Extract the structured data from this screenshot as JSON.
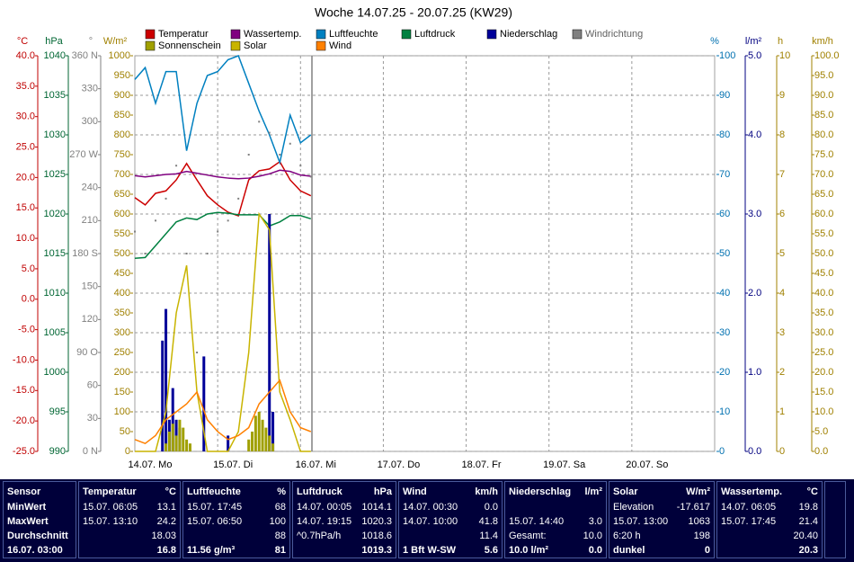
{
  "chart_data": {
    "type": "line",
    "title": "Woche 14.07.25 - 20.07.25 (KW29)",
    "xlim": [
      0,
      168
    ],
    "xticks": [
      {
        "value": 0,
        "label": "14.07. Mo"
      },
      {
        "value": 24,
        "label": "15.07. Di"
      },
      {
        "value": 48,
        "label": "16.07. Mi"
      },
      {
        "value": 72,
        "label": "17.07. Do"
      },
      {
        "value": 96,
        "label": "18.07. Fr"
      },
      {
        "value": 120,
        "label": "19.07. Sa"
      },
      {
        "value": 144,
        "label": "20.07. So"
      }
    ],
    "axes": [
      {
        "title": "°C",
        "color": "#c00000",
        "lim": [
          -25,
          40
        ],
        "ticks": [
          {
            "value": 40,
            "label": "40.0"
          },
          {
            "value": 35,
            "label": "35.0"
          },
          {
            "value": 30,
            "label": "30.0"
          },
          {
            "value": 25,
            "label": "25.0"
          },
          {
            "value": 20,
            "label": "20.0"
          },
          {
            "value": 15,
            "label": "15.0"
          },
          {
            "value": 10,
            "label": "10.0"
          },
          {
            "value": 5,
            "label": "5.0"
          },
          {
            "value": 0,
            "label": "0.0"
          },
          {
            "value": -5,
            "label": "-5.0"
          },
          {
            "value": -10,
            "label": "-10.0"
          },
          {
            "value": -15,
            "label": "-15.0"
          },
          {
            "value": -20,
            "label": "-20.0"
          },
          {
            "value": -25,
            "label": "-25.0"
          }
        ]
      },
      {
        "title": "hPa",
        "color": "#006633",
        "lim": [
          990,
          1040
        ],
        "ticks": [
          1040,
          1035,
          1030,
          1025,
          1020,
          1015,
          1010,
          1005,
          1000,
          995,
          990
        ]
      },
      {
        "title": "°",
        "color": "#808080",
        "lim": [
          0,
          360
        ],
        "ticks": [
          {
            "value": 360,
            "label": "360 N"
          },
          330,
          300,
          {
            "value": 270,
            "label": "270 W"
          },
          240,
          210,
          {
            "value": 180,
            "label": "180 S"
          },
          150,
          120,
          {
            "value": 90,
            "label": "90 O"
          },
          60,
          30,
          {
            "value": 0,
            "label": "0 N"
          }
        ]
      },
      {
        "title": "W/m²",
        "color": "#a08000",
        "lim": [
          0,
          1000
        ],
        "ticks": [
          1000,
          950,
          900,
          850,
          800,
          750,
          700,
          650,
          600,
          550,
          500,
          450,
          400,
          350,
          300,
          250,
          200,
          150,
          100,
          50,
          0
        ]
      },
      {
        "title": "%",
        "color": "#0070b0",
        "lim": [
          0,
          100
        ],
        "grid": true,
        "ticks": [
          100,
          90,
          80,
          70,
          60,
          50,
          40,
          30,
          20,
          10,
          0
        ]
      },
      {
        "title": "l/m²",
        "color": "#000080",
        "lim": [
          0,
          5
        ],
        "ticks": [
          {
            "value": 5,
            "label": "5.0"
          },
          {
            "value": 4,
            "label": "4.0"
          },
          {
            "value": 3,
            "label": "3.0"
          },
          {
            "value": 2,
            "label": "2.0"
          },
          {
            "value": 1,
            "label": "1.0"
          },
          {
            "value": 0,
            "label": "0.0"
          }
        ]
      },
      {
        "title": "h",
        "color": "#a08000",
        "lim": [
          0,
          10
        ],
        "ticks": [
          10,
          9,
          8,
          7,
          6,
          5,
          4,
          3,
          2,
          1,
          0
        ]
      },
      {
        "title": "km/h",
        "color": "#a08000",
        "lim": [
          0,
          100
        ],
        "ticks": [
          {
            "value": 100,
            "label": "100.0"
          },
          {
            "value": 95,
            "label": "95.0"
          },
          {
            "value": 90,
            "label": "90.0"
          },
          {
            "value": 85,
            "label": "85.0"
          },
          {
            "value": 80,
            "label": "80.0"
          },
          {
            "value": 75,
            "label": "75.0"
          },
          {
            "value": 70,
            "label": "70.0"
          },
          {
            "value": 65,
            "label": "65.0"
          },
          {
            "value": 60,
            "label": "60.0"
          },
          {
            "value": 55,
            "label": "55.0"
          },
          {
            "value": 50,
            "label": "50.0"
          },
          {
            "value": 45,
            "label": "45.0"
          },
          {
            "value": 40,
            "label": "40.0"
          },
          {
            "value": 35,
            "label": "35.0"
          },
          {
            "value": 30,
            "label": "30.0"
          },
          {
            "value": 25,
            "label": "25.0"
          },
          {
            "value": 20,
            "label": "20.0"
          },
          {
            "value": 15,
            "label": "15.0"
          },
          {
            "value": 10,
            "label": "10.0"
          },
          {
            "value": 5,
            "label": "5.0"
          },
          {
            "value": 0,
            "label": "0.0"
          }
        ]
      }
    ],
    "x": [
      0,
      3,
      6,
      9,
      12,
      15,
      18,
      21,
      24,
      27,
      30,
      33,
      36,
      39,
      42,
      45,
      48,
      51
    ],
    "series": [
      {
        "name": "Temperatur",
        "color": "#cc0000",
        "axis": 0,
        "mark": "line",
        "values": [
          16.7,
          15.5,
          17.4,
          17.8,
          19.6,
          22.3,
          19.6,
          17,
          15.5,
          14.3,
          13.7,
          19.6,
          21.1,
          21.4,
          22.6,
          19.6,
          17.8,
          17
        ]
      },
      {
        "name": "Wassertemp.",
        "color": "#800080",
        "axis": 0,
        "mark": "line",
        "values": [
          20.3,
          20.1,
          20.3,
          20.5,
          20.6,
          21,
          20.7,
          20.4,
          20.1,
          19.9,
          19.8,
          19.9,
          20.2,
          20.6,
          21.2,
          21,
          20.4,
          20.2
        ]
      },
      {
        "name": "Luftfeuchte",
        "color": "#0080c0",
        "axis": 4,
        "mark": "line",
        "values": [
          94,
          97,
          88,
          96,
          96,
          76,
          88,
          95,
          96,
          99,
          100,
          93,
          86,
          80,
          73,
          85,
          78,
          80
        ]
      },
      {
        "name": "Luftdruck",
        "color": "#008040",
        "axis": 1,
        "mark": "line",
        "values": [
          1014.4,
          1014.5,
          1016,
          1017.5,
          1019,
          1019.5,
          1019.3,
          1020,
          1020.2,
          1020.1,
          1019.9,
          1019.9,
          1019.9,
          1018.5,
          1019,
          1019.8,
          1019.8,
          1019.4
        ]
      },
      {
        "name": "Niederschlag",
        "color": "#000099",
        "axis": 5,
        "mark": "bar",
        "x": [
          8,
          9,
          10,
          11,
          12,
          13,
          20,
          27,
          39,
          40
        ],
        "values": [
          1.4,
          1.8,
          0.4,
          0.8,
          0.4,
          0.3,
          1.2,
          0.2,
          3,
          0.5
        ]
      },
      {
        "name": "Windrichtung",
        "color": "#808080",
        "axis": 2,
        "mark": "dots",
        "values": [
          200,
          180,
          210,
          230,
          260,
          180,
          90,
          180,
          200,
          210,
          230,
          270,
          300,
          290,
          270,
          280,
          260,
          250
        ]
      },
      {
        "name": "Sonnenschein",
        "color": "#a0a000",
        "axis": 6,
        "mark": "bar",
        "x": [
          9,
          10,
          11,
          12,
          13,
          14,
          15,
          16,
          33,
          34,
          35,
          36,
          37,
          38,
          39,
          40
        ],
        "values": [
          0.2,
          0.5,
          0.7,
          0.4,
          0.8,
          0.6,
          0.3,
          0.2,
          0.3,
          0.5,
          0.9,
          1,
          0.8,
          0.6,
          0.4,
          0.2
        ]
      },
      {
        "name": "Solar",
        "color": "#c8b400",
        "axis": 3,
        "mark": "line",
        "values": [
          0,
          0,
          0,
          100,
          350,
          470,
          150,
          0,
          0,
          0,
          50,
          250,
          600,
          560,
          150,
          80,
          0,
          0
        ]
      },
      {
        "name": "Wind",
        "color": "#ff8000",
        "axis": 7,
        "mark": "line",
        "values": [
          3,
          2,
          4,
          8,
          10,
          12,
          15,
          8,
          5,
          3,
          4,
          6,
          12,
          15,
          18,
          10,
          6,
          5
        ]
      }
    ]
  },
  "table": {
    "columns": [
      {
        "header": "Sensor",
        "rows": [
          {
            "label": "MinWert"
          },
          {
            "label": "MaxWert"
          },
          {
            "label": "Durchschnitt"
          },
          {
            "label": "16.07. 03:00"
          }
        ]
      },
      {
        "header": "Temperatur",
        "unit": "°C",
        "rows": [
          {
            "label": "15.07. 06:05",
            "value": "13.1"
          },
          {
            "label": "15.07. 13:10",
            "value": "24.2"
          },
          {
            "value": "18.03"
          },
          {
            "value": "16.8"
          }
        ]
      },
      {
        "header": "Luftfeuchte",
        "unit": "%",
        "rows": [
          {
            "label": "15.07. 17:45",
            "value": "68"
          },
          {
            "label": "15.07. 06:50",
            "value": "100"
          },
          {
            "value": "88"
          },
          {
            "label": "11.56 g/m³",
            "value": "81"
          }
        ]
      },
      {
        "header": "Luftdruck",
        "unit": "hPa",
        "rows": [
          {
            "label": "14.07. 00:05",
            "value": "1014.1"
          },
          {
            "label": "14.07. 19:15",
            "value": "1020.3"
          },
          {
            "label": "^0.7hPa/h",
            "value": "1018.6"
          },
          {
            "value": "1019.3"
          }
        ]
      },
      {
        "header": "Wind",
        "unit": "km/h",
        "rows": [
          {
            "label": "14.07. 00:30",
            "value": "0.0"
          },
          {
            "label": "14.07. 10:00",
            "value": "41.8"
          },
          {
            "value": "11.4"
          },
          {
            "label": "1 Bft W-SW",
            "value": "5.6"
          }
        ]
      },
      {
        "header": "Niederschlag",
        "unit": "l/m²",
        "rows": [
          {},
          {
            "label": "15.07. 14:40",
            "value": "3.0"
          },
          {
            "label": "Gesamt:",
            "value": "10.0"
          },
          {
            "label": "10.0 l/m²",
            "value": "0.0"
          }
        ]
      },
      {
        "header": "Solar",
        "unit": "W/m²",
        "rows": [
          {
            "label": "Elevation",
            "value": "-17.617"
          },
          {
            "label": "15.07. 13:00",
            "value": "1063"
          },
          {
            "label": "6:20 h",
            "value": "198"
          },
          {
            "label": "dunkel",
            "value": "0"
          }
        ]
      },
      {
        "header": "Wassertemp.",
        "unit": "°C",
        "rows": [
          {
            "label": "14.07. 06:05",
            "value": "19.8"
          },
          {
            "label": "15.07. 17:45",
            "value": "21.4"
          },
          {
            "value": "20.40"
          },
          {
            "value": "20.3"
          }
        ]
      }
    ]
  }
}
